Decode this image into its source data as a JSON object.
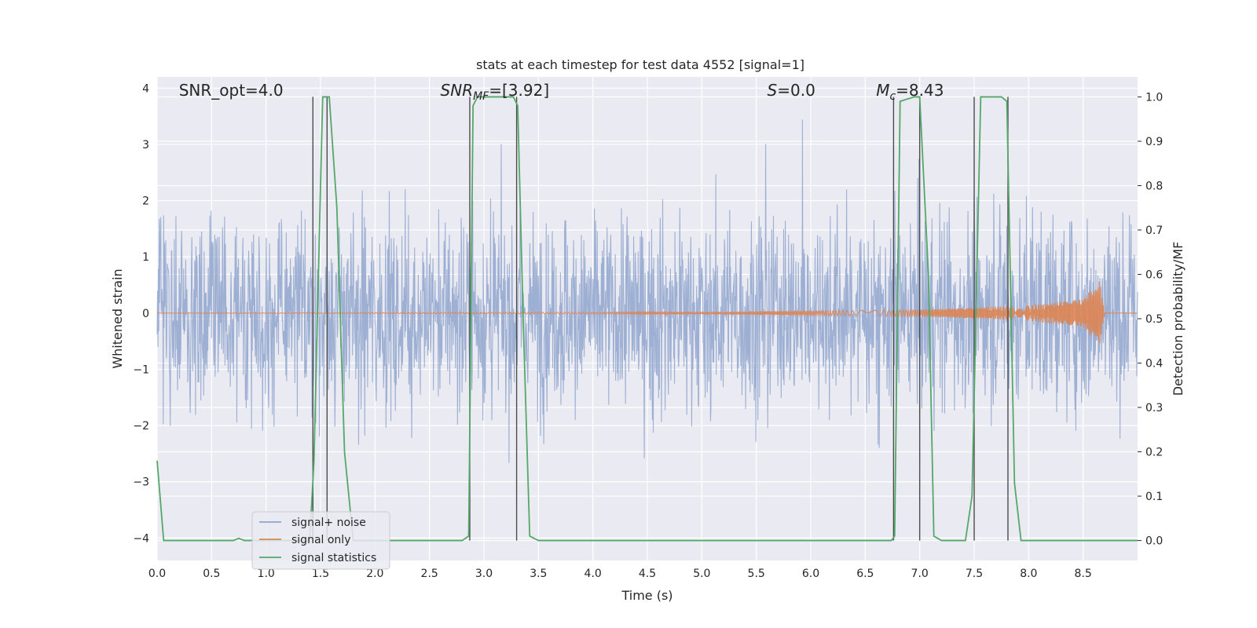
{
  "chart_data": {
    "type": "line",
    "title": "stats at each timestep for test data 4552 [signal=1]",
    "xlabel": "Time (s)",
    "ylabel_left": "Whitened strain",
    "ylabel_right": "Detection probability/MF",
    "xlim": [
      0,
      9.0
    ],
    "ylim_left": [
      -4.4,
      4.2
    ],
    "ylim_right": [
      -0.045,
      1.045
    ],
    "x_ticks": [
      "0.0",
      "0.5",
      "1.0",
      "1.5",
      "2.0",
      "2.5",
      "3.0",
      "3.5",
      "4.0",
      "4.5",
      "5.0",
      "5.5",
      "6.0",
      "6.5",
      "7.0",
      "7.5",
      "8.0",
      "8.5"
    ],
    "y_ticks_left": [
      "4",
      "3",
      "2",
      "1",
      "0",
      "−1",
      "−2",
      "−3",
      "−4"
    ],
    "y_ticks_right": [
      "1.0",
      "0.9",
      "0.8",
      "0.7",
      "0.6",
      "0.5",
      "0.4",
      "0.3",
      "0.2",
      "0.1",
      "0.0"
    ],
    "grid": true,
    "legend_position": "lower-left",
    "colors": {
      "noise": "#8fa4cc",
      "signal": "#dd8452",
      "stats": "#55a868",
      "vline": "#4c4c4c",
      "background": "#eaeaf2",
      "grid": "#ffffff"
    },
    "series": [
      {
        "name": "signal+ noise",
        "description_values": "dense noise, amplitude mostly within ±2.5, peaks to ±3.5"
      },
      {
        "name": "signal only",
        "values_envelope": {
          "x": [
            0.0,
            5.0,
            7.0,
            8.0,
            8.5,
            8.65,
            8.7,
            9.0
          ],
          "amp": [
            0.0,
            0.02,
            0.06,
            0.14,
            0.25,
            0.6,
            0.0,
            0.0
          ]
        }
      },
      {
        "name": "signal statistics",
        "x": [
          0.0,
          0.06,
          0.1,
          0.7,
          0.75,
          0.8,
          1.4,
          1.44,
          1.5,
          1.52,
          1.58,
          1.65,
          1.72,
          1.8,
          2.8,
          2.86,
          2.9,
          2.94,
          3.27,
          3.31,
          3.36,
          3.42,
          3.5,
          6.74,
          6.77,
          6.82,
          6.95,
          7.0,
          7.08,
          7.13,
          7.2,
          7.42,
          7.48,
          7.56,
          7.75,
          7.8,
          7.87,
          7.93,
          8.0,
          9.0
        ],
        "values": [
          0.18,
          0.0,
          0.0,
          0.0,
          0.005,
          0.0,
          0.0,
          0.18,
          0.8,
          1.0,
          1.0,
          0.75,
          0.2,
          0.0,
          0.0,
          0.01,
          0.98,
          1.0,
          1.0,
          0.98,
          0.5,
          0.01,
          0.0,
          0.0,
          0.01,
          0.99,
          1.0,
          1.0,
          0.6,
          0.01,
          0.0,
          0.0,
          0.1,
          1.0,
          1.0,
          0.99,
          0.13,
          0.0,
          0.0,
          0.0
        ]
      }
    ],
    "vlines": [
      1.43,
      1.56,
      2.87,
      3.3,
      6.76,
      7.0,
      7.5,
      7.81
    ],
    "annotations": [
      {
        "text": "SNR_opt=4.0",
        "x": 0.2
      },
      {
        "text_main": "SNR",
        "text_sub": "MF",
        "text_rest": "=[3.92]",
        "x": 2.6
      },
      {
        "text_main": "S",
        "text_rest": "=0.0",
        "x": 5.6
      },
      {
        "text_main": "M",
        "text_sub": "c",
        "text_rest": "=8.43",
        "x": 6.6
      }
    ],
    "legend": [
      "signal+ noise",
      "signal only",
      "signal statistics"
    ]
  }
}
